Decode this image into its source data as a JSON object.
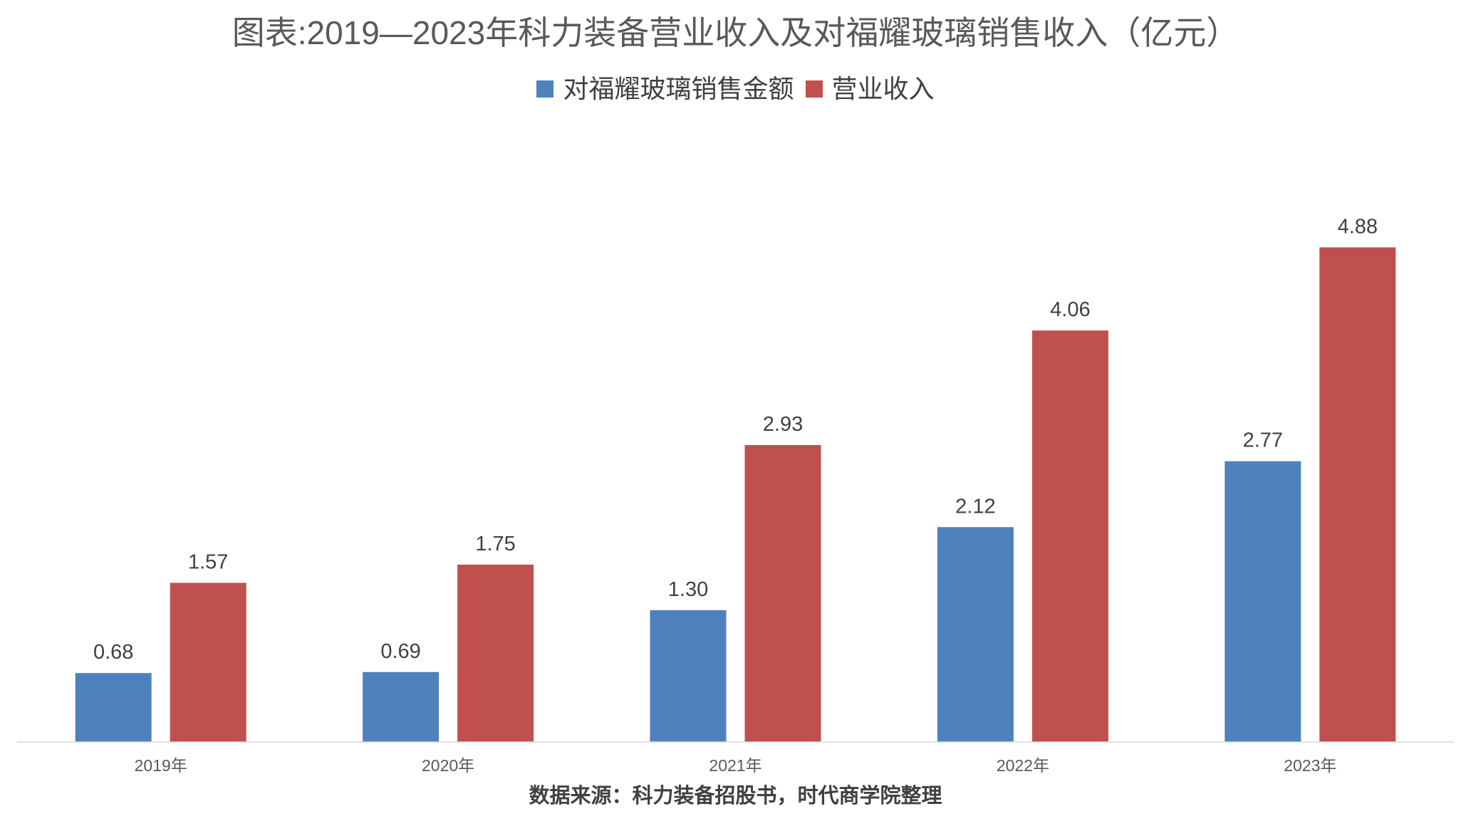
{
  "chart_data": {
    "type": "bar",
    "title": "图表:2019—2023年科力装备营业收入及对福耀玻璃销售收入（亿元）",
    "categories": [
      "2019年",
      "2020年",
      "2021年",
      "2022年",
      "2023年"
    ],
    "series": [
      {
        "name": "对福耀玻璃销售金额",
        "color": "#4F81BD",
        "values": [
          0.68,
          0.69,
          1.3,
          2.12,
          2.77
        ],
        "labels": [
          "0.68",
          "0.69",
          "1.30",
          "2.12",
          "2.77"
        ]
      },
      {
        "name": "营业收入",
        "color": "#C0504D",
        "values": [
          1.57,
          1.75,
          2.93,
          4.06,
          4.88
        ],
        "labels": [
          "1.57",
          "1.75",
          "2.93",
          "4.06",
          "4.88"
        ]
      }
    ],
    "ylim": [
      0,
      6
    ],
    "grid": false,
    "legend": "top-center"
  },
  "source": "数据来源：科力装备招股书，时代商学院整理"
}
